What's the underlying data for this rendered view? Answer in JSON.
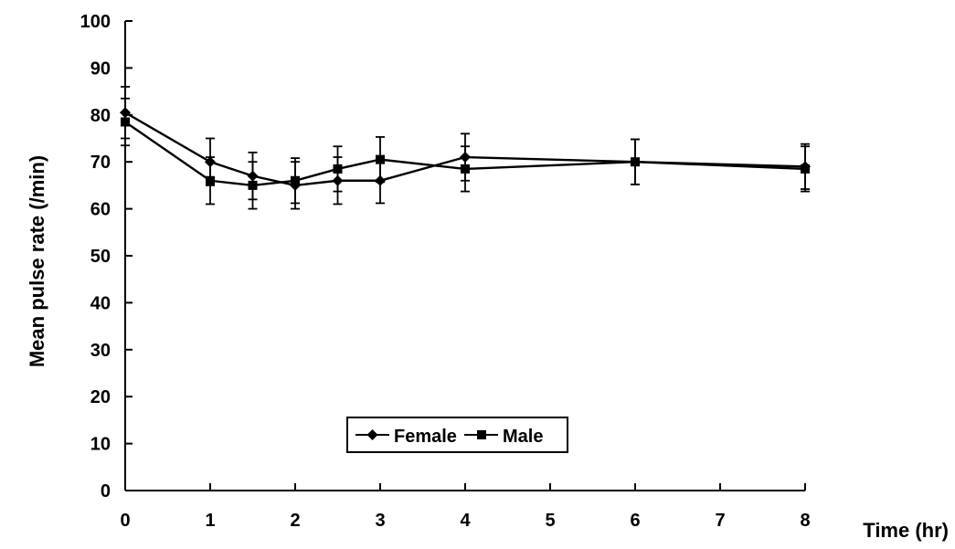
{
  "chart_data": {
    "type": "line",
    "title": "",
    "xlabel": "Time (hr)",
    "ylabel": "Mean pulse rate (/min)",
    "xlim": [
      0,
      8
    ],
    "ylim": [
      0,
      100
    ],
    "x_ticks": [
      0,
      1,
      2,
      3,
      4,
      5,
      6,
      7,
      8
    ],
    "y_ticks": [
      0,
      10,
      20,
      30,
      40,
      50,
      60,
      70,
      80,
      90,
      100
    ],
    "grid": false,
    "legend_position": "bottom-center",
    "series": [
      {
        "name": "Female",
        "marker": "diamond",
        "color": "#000000",
        "points": [
          {
            "x": 0,
            "y": 80.5,
            "err": 5.5
          },
          {
            "x": 1,
            "y": 70.0,
            "err": 5.0
          },
          {
            "x": 1.5,
            "y": 67.0,
            "err": 5.0
          },
          {
            "x": 2,
            "y": 65.0,
            "err": 5.0
          },
          {
            "x": 2.5,
            "y": 66.0,
            "err": 5.0
          },
          {
            "x": 3,
            "y": 66.0,
            "err": 4.8
          },
          {
            "x": 4,
            "y": 71.0,
            "err": 5.0
          },
          {
            "x": 6,
            "y": 70.0,
            "err": 4.8
          },
          {
            "x": 8,
            "y": 69.0,
            "err": 4.8
          }
        ]
      },
      {
        "name": "Male",
        "marker": "square",
        "color": "#000000",
        "points": [
          {
            "x": 0,
            "y": 78.5,
            "err": 5.0
          },
          {
            "x": 1,
            "y": 66.0,
            "err": 5.0
          },
          {
            "x": 1.5,
            "y": 65.0,
            "err": 5.0
          },
          {
            "x": 2,
            "y": 66.0,
            "err": 4.8
          },
          {
            "x": 2.5,
            "y": 68.5,
            "err": 4.8
          },
          {
            "x": 3,
            "y": 70.5,
            "err": 4.8
          },
          {
            "x": 4,
            "y": 68.5,
            "err": 4.8
          },
          {
            "x": 6,
            "y": 70.0,
            "err": 4.8
          },
          {
            "x": 8,
            "y": 68.5,
            "err": 4.8
          }
        ]
      }
    ]
  }
}
